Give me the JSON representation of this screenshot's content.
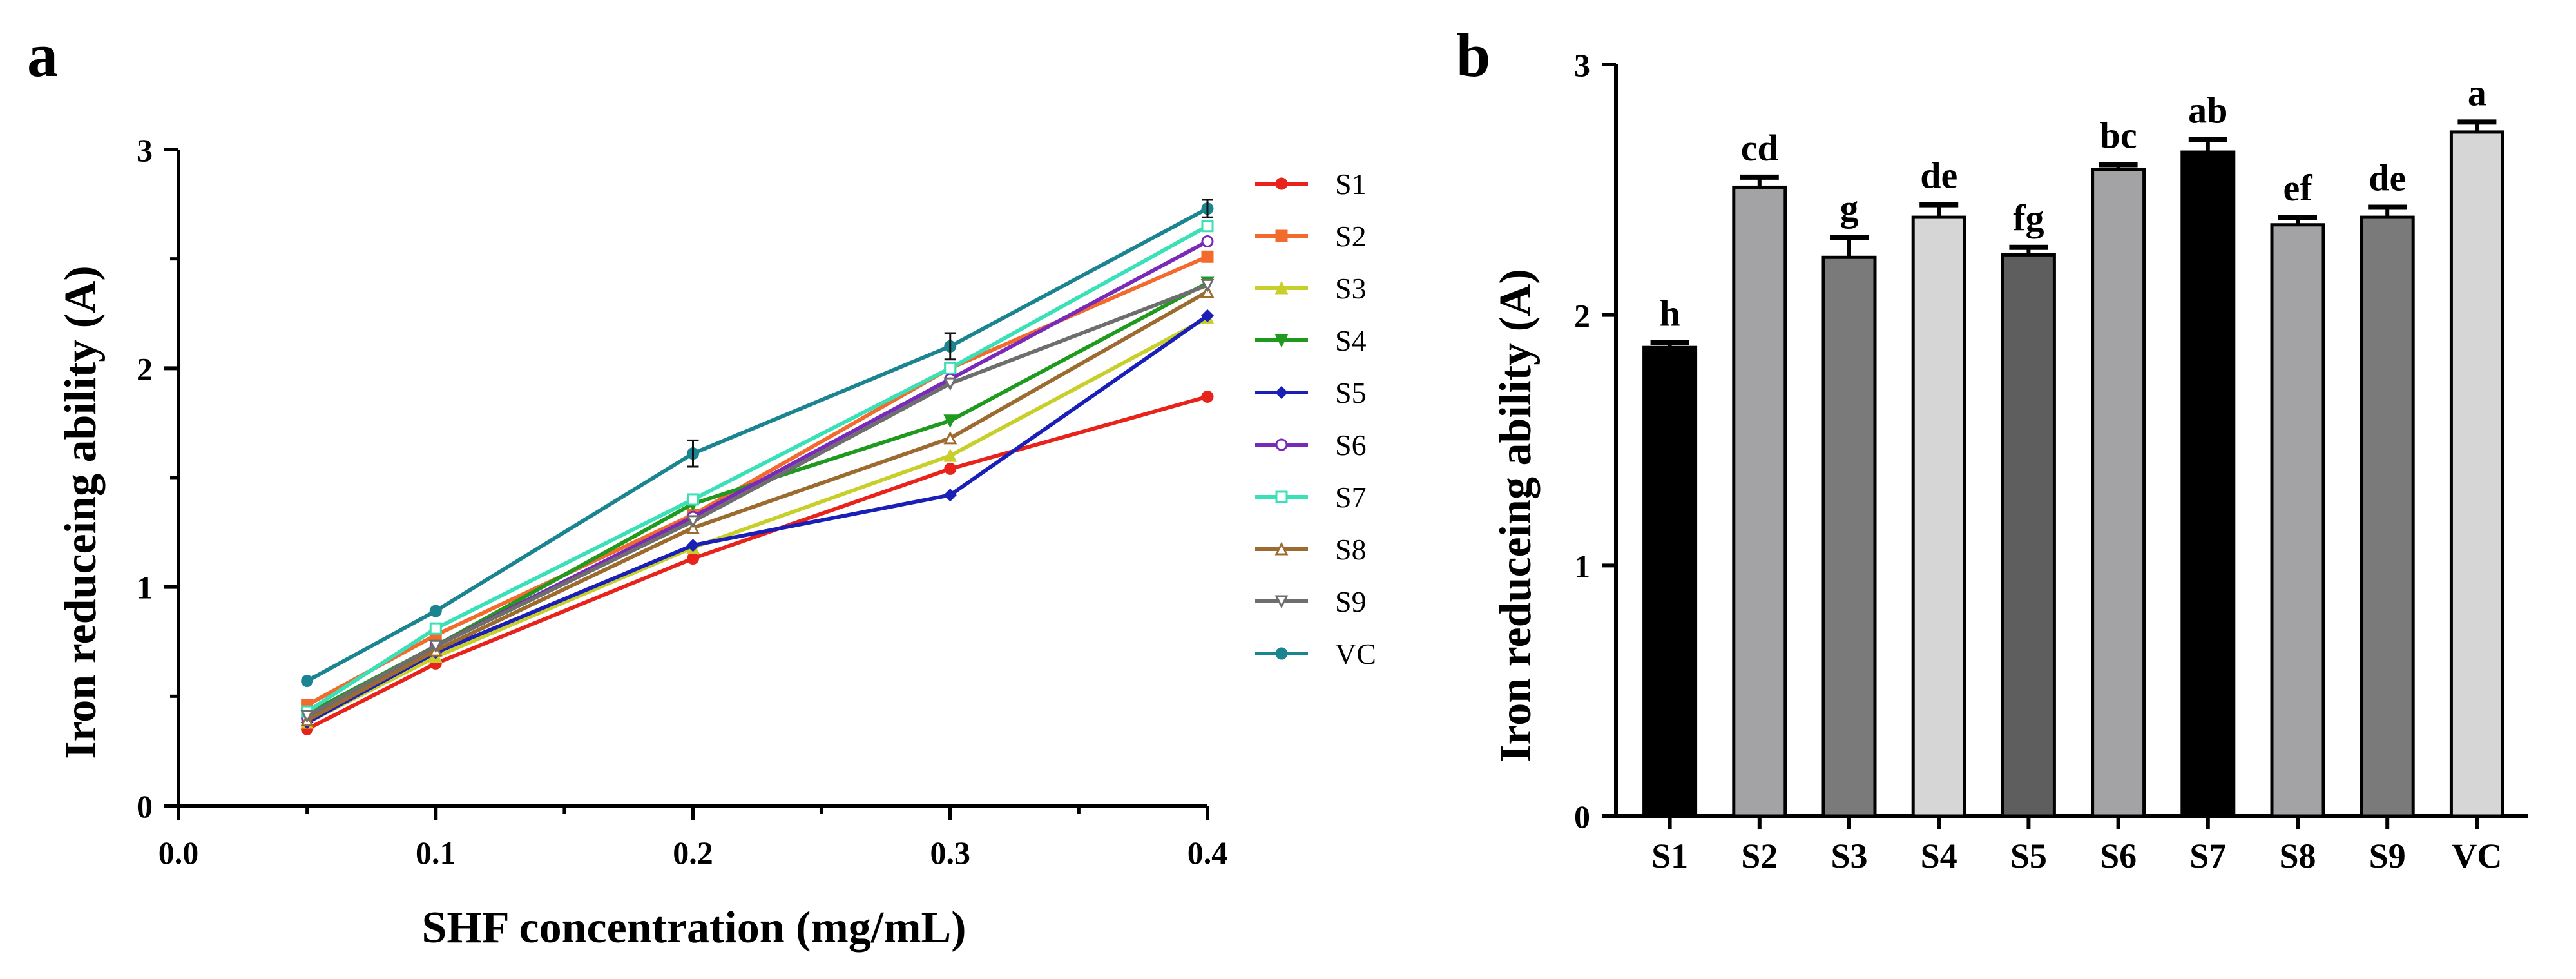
{
  "panels": {
    "a": "a",
    "b": "b"
  },
  "chart_data": [
    {
      "type": "line",
      "panel": "a",
      "title": "",
      "xlabel": "SHF concentration (mg/mL)",
      "ylabel": "Iron reduceing ability (A)",
      "xlim": [
        0.0,
        0.4
      ],
      "ylim": [
        0,
        3
      ],
      "xticks": [
        "0.0",
        "0.1",
        "0.2",
        "0.3",
        "0.4"
      ],
      "yticks": [
        "0",
        "1",
        "2",
        "3"
      ],
      "legend_position": "right",
      "x": [
        0.05,
        0.1,
        0.2,
        0.3,
        0.4
      ],
      "series": [
        {
          "name": "S1",
          "color": "#e8231c",
          "marker": "circle-filled",
          "values": [
            0.35,
            0.65,
            1.13,
            1.54,
            1.87
          ]
        },
        {
          "name": "S2",
          "color": "#f26b2c",
          "marker": "square-filled",
          "values": [
            0.46,
            0.78,
            1.33,
            2.0,
            2.51
          ]
        },
        {
          "name": "S3",
          "color": "#c9cf2a",
          "marker": "triangle-filled",
          "values": [
            0.38,
            0.68,
            1.18,
            1.6,
            2.23
          ]
        },
        {
          "name": "S4",
          "color": "#1f9a1f",
          "marker": "triangle-down-filled",
          "values": [
            0.42,
            0.73,
            1.38,
            1.76,
            2.39
          ]
        },
        {
          "name": "S5",
          "color": "#1a1fb8",
          "marker": "diamond-filled",
          "values": [
            0.38,
            0.7,
            1.19,
            1.42,
            2.24
          ]
        },
        {
          "name": "S6",
          "color": "#7a2ab8",
          "marker": "circle-open",
          "values": [
            0.4,
            0.73,
            1.32,
            1.95,
            2.58
          ]
        },
        {
          "name": "S7",
          "color": "#3ae0b8",
          "marker": "square-open",
          "values": [
            0.43,
            0.81,
            1.4,
            2.0,
            2.65
          ]
        },
        {
          "name": "S8",
          "color": "#9c6b30",
          "marker": "triangle-open",
          "values": [
            0.39,
            0.71,
            1.27,
            1.68,
            2.35
          ]
        },
        {
          "name": "S9",
          "color": "#6e6e6e",
          "marker": "triangle-down-open",
          "values": [
            0.41,
            0.73,
            1.3,
            1.93,
            2.38
          ]
        },
        {
          "name": "VC",
          "color": "#1a8590",
          "marker": "circle-filled",
          "values": [
            0.57,
            0.89,
            1.61,
            2.1,
            2.73
          ]
        }
      ],
      "error_bars_on": "VC",
      "errors": [
        0.0,
        0.0,
        0.06,
        0.06,
        0.04
      ]
    },
    {
      "type": "bar",
      "panel": "b",
      "title": "",
      "xlabel": "",
      "ylabel": "Iron reduceing ability (A)",
      "ylim": [
        0,
        3
      ],
      "yticks": [
        "0",
        "1",
        "2",
        "3"
      ],
      "categories": [
        "S1",
        "S2",
        "S3",
        "S4",
        "S5",
        "S6",
        "S7",
        "S8",
        "S9",
        "VC"
      ],
      "values": [
        1.87,
        2.51,
        2.23,
        2.39,
        2.24,
        2.58,
        2.65,
        2.36,
        2.39,
        2.73
      ],
      "errors": [
        0.02,
        0.04,
        0.08,
        0.05,
        0.03,
        0.02,
        0.05,
        0.03,
        0.04,
        0.04
      ],
      "significance_letters": [
        "h",
        "cd",
        "g",
        "de",
        "fg",
        "bc",
        "ab",
        "ef",
        "de",
        "a"
      ],
      "bar_colors": [
        "#000000",
        "#a3a3a6",
        "#7a7a7a",
        "#d6d6d6",
        "#5e5e5e",
        "#a3a3a6",
        "#000000",
        "#a3a3a6",
        "#7a7a7a",
        "#d6d6d6"
      ]
    }
  ]
}
